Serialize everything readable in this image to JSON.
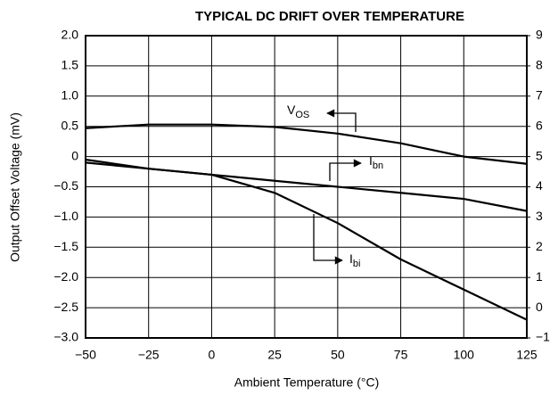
{
  "chart_data": {
    "type": "line",
    "title": "TYPICAL DC DRIFT OVER TEMPERATURE",
    "x_label": "Ambient Temperature (°C)",
    "y_label": "Output Offset Voltage (mV)",
    "x": [
      -50,
      -25,
      0,
      25,
      50,
      75,
      100,
      125
    ],
    "series": [
      {
        "label": {
          "main": "V",
          "sub": "OS"
        },
        "color": "#000000",
        "values": [
          0.47,
          0.53,
          0.53,
          0.49,
          0.38,
          0.22,
          0.0,
          -0.12
        ]
      },
      {
        "label": {
          "main": "I",
          "sub": "bn"
        },
        "color": "#000000",
        "axis": "y2",
        "values": [
          4.8,
          4.6,
          4.4,
          4.2,
          4.0,
          3.8,
          3.6,
          3.2
        ]
      },
      {
        "label": {
          "main": "I",
          "sub": "bi"
        },
        "color": "#000000",
        "axis": "y2",
        "values": [
          4.9,
          4.6,
          4.4,
          3.8,
          2.8,
          1.6,
          0.6,
          -0.4
        ]
      }
    ],
    "xlim": [
      -50,
      125
    ],
    "xticks": [
      {
        "value": -50,
        "label": "−50"
      },
      {
        "value": -25,
        "label": "−25"
      },
      0,
      25,
      50,
      75,
      100,
      125
    ],
    "ylim": [
      -3,
      2
    ],
    "yticks": [
      {
        "value": -3,
        "label": "−3.0"
      },
      {
        "value": -2.5,
        "label": "−2.5"
      },
      {
        "value": -2,
        "label": "−2.0"
      },
      {
        "value": -1.5,
        "label": "−1.5"
      },
      {
        "value": -1,
        "label": "−1.0"
      },
      {
        "value": -0.5,
        "label": "−0.5"
      },
      0,
      0.5,
      {
        "value": 1,
        "label": "1.0"
      },
      1.5,
      {
        "value": 2,
        "label": "2.0"
      }
    ],
    "y2lim": [
      -1,
      9
    ],
    "y2ticks": [
      {
        "value": -1,
        "label": "−1"
      },
      0,
      1,
      2,
      3,
      4,
      5,
      6,
      7,
      8,
      9
    ],
    "grid": true
  }
}
